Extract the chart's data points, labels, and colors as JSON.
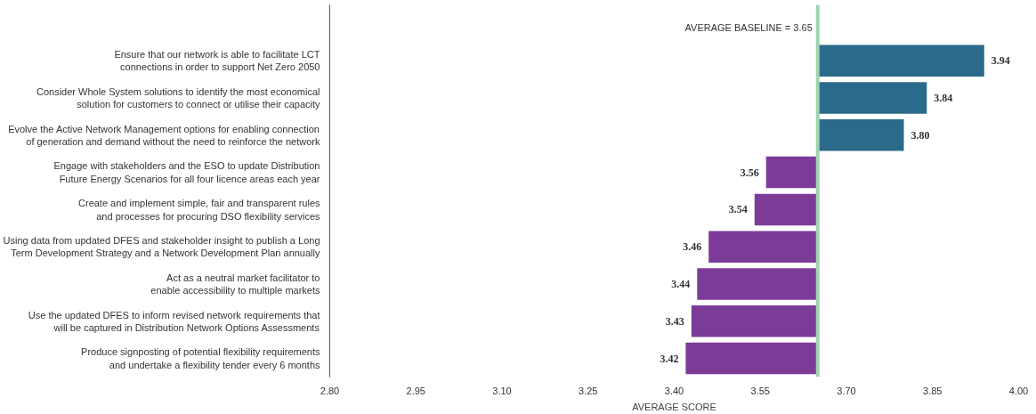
{
  "chart_data": {
    "type": "bar",
    "orientation": "horizontal",
    "xlabel": "AVERAGE SCORE",
    "categories": [
      "Ensure that our network is able to facilitate LCT connections in order to support Net Zero 2050",
      "Consider Whole System solutions to identify the most economical solution for customers to connect or utilise their capacity",
      "Evolve the Active Network Management options for enabling connection of generation and demand without the need to reinforce the network",
      "Engage with stakeholders and the ESO to update Distribution Future Energy Scenarios for all four licence areas each year",
      "Create and implement simple, fair and transparent rules and processes for procuring DSO flexibility services",
      "Using data from updated DFES and stakeholder insight to publish a Long Term Development Strategy and a Network Development Plan annually",
      "Act as a neutral market facilitator to enable accessibility to multiple markets",
      "Use the updated DFES to inform revised network requirements that will be captured in Distribution Network Options Assessments",
      "Produce signposting of potential flexibility requirements and undertake a flexibility tender every 6 months"
    ],
    "base": [
      3.65,
      3.65,
      3.65,
      3.65,
      3.65,
      3.65,
      3.65,
      3.65,
      3.65
    ],
    "values": [
      0.29,
      0.19,
      0.15,
      -0.09,
      -0.11,
      -0.19,
      -0.21,
      -0.22,
      -0.23
    ],
    "value_labels": [
      "3.94",
      "3.84",
      "3.80",
      "3.56",
      "3.54",
      "3.46",
      "3.44",
      "3.43",
      "3.42"
    ],
    "colors": [
      "#2b6a8a",
      "#2b6a8a",
      "#2b6a8a",
      "#7d3b98",
      "#7d3b98",
      "#7d3b98",
      "#7d3b98",
      "#7d3b98",
      "#7d3b98"
    ],
    "xlim": [
      2.8,
      4.0
    ],
    "xticks": [
      {
        "value": 2.8,
        "label": "2.80"
      },
      {
        "value": 2.95,
        "label": "2.95"
      },
      {
        "value": 3.1,
        "label": "3.10"
      },
      {
        "value": 3.25,
        "label": "3.25"
      },
      {
        "value": 3.4,
        "label": "3.40"
      },
      {
        "value": 3.55,
        "label": "3.55"
      },
      {
        "value": 3.7,
        "label": "3.70"
      },
      {
        "value": 3.85,
        "label": "3.85"
      },
      {
        "value": 4.0,
        "label": "4.00"
      }
    ],
    "ref_lines": [
      {
        "axis": "x",
        "value": 3.65,
        "label": "AVERAGE BASELINE = 3.65",
        "color": "#9fd4b0"
      }
    ],
    "grid": false
  }
}
